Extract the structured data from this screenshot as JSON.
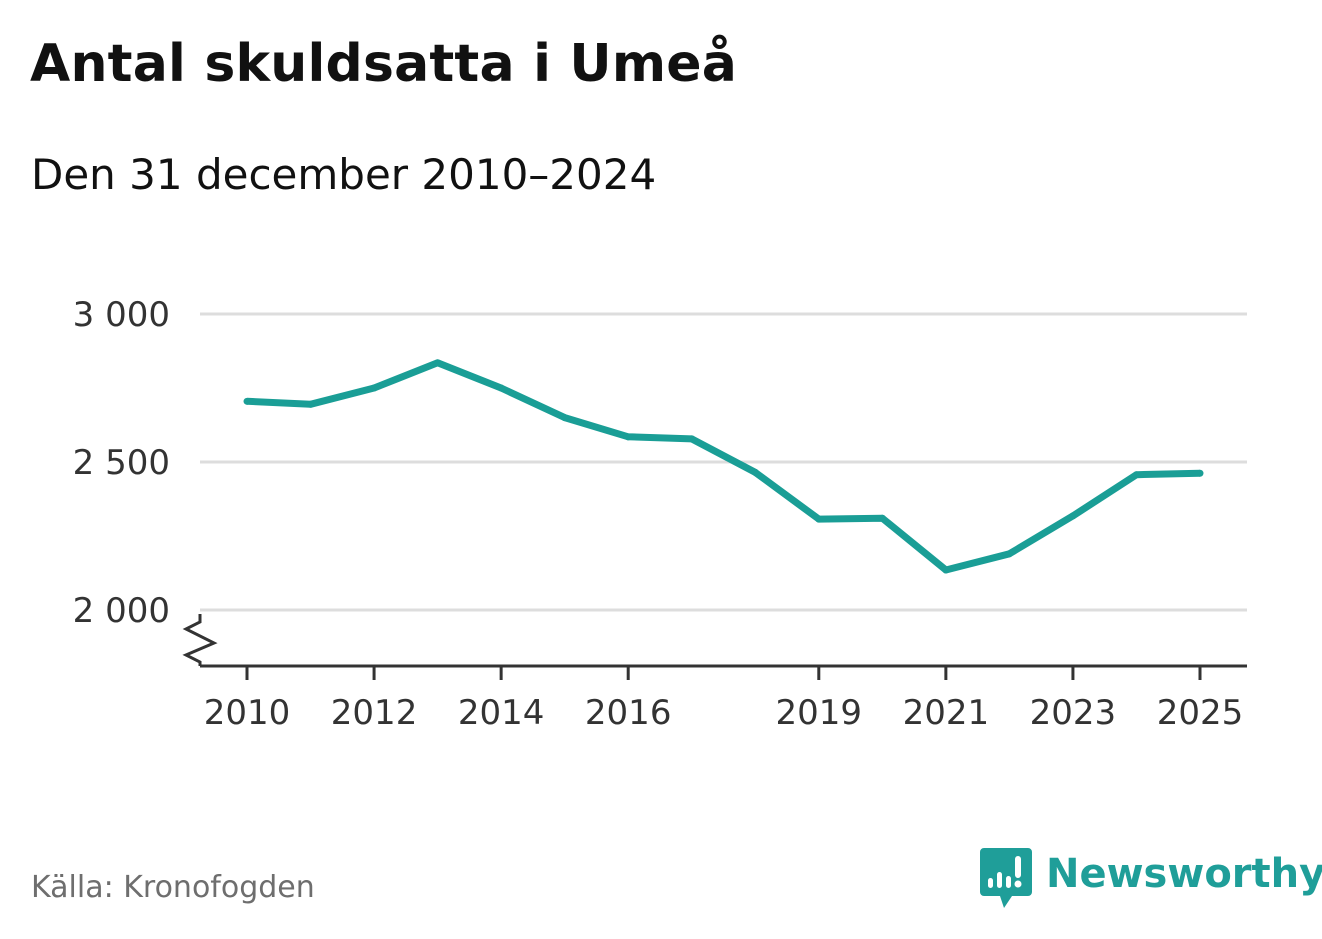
{
  "header": {
    "title": "Antal skuldsatta i Umeå",
    "subtitle": "Den 31 december 2010–2024"
  },
  "footer": {
    "source": "Källa: Kronofogden",
    "brand": "Newsworthy"
  },
  "colors": {
    "line": "#1a9e96",
    "grid": "#dddddd",
    "axis": "#333333",
    "brand": "#1f9e99"
  },
  "chart_data": {
    "type": "line",
    "title": "Antal skuldsatta i Umeå",
    "subtitle": "Den 31 december 2010–2024",
    "xlabel": "",
    "ylabel": "",
    "xlim": [
      2009.6,
      2025.4
    ],
    "ylim": [
      1810,
      3000
    ],
    "y_axis_break": true,
    "grid": true,
    "y_ticks": [
      {
        "value": 2000,
        "label": "2 000"
      },
      {
        "value": 2500,
        "label": "2 500"
      },
      {
        "value": 3000,
        "label": "3 000"
      }
    ],
    "x_ticks": [
      {
        "value": 2010,
        "label": "2010"
      },
      {
        "value": 2012,
        "label": "2012"
      },
      {
        "value": 2014,
        "label": "2014"
      },
      {
        "value": 2016,
        "label": "2016"
      },
      {
        "value": 2019,
        "label": "2019"
      },
      {
        "value": 2021,
        "label": "2021"
      },
      {
        "value": 2023,
        "label": "2023"
      },
      {
        "value": 2025,
        "label": "2025"
      }
    ],
    "series": [
      {
        "name": "Antal skuldsatta",
        "x": [
          2010,
          2011,
          2012,
          2013,
          2014,
          2015,
          2016,
          2017,
          2018,
          2019,
          2020,
          2021,
          2022,
          2023,
          2024,
          2025
        ],
        "values": [
          2705,
          2695,
          2750,
          2835,
          2750,
          2650,
          2585,
          2578,
          2465,
          2307,
          2310,
          2135,
          2190,
          2318,
          2457,
          2462
        ]
      }
    ],
    "source": "Källa: Kronofogden"
  }
}
